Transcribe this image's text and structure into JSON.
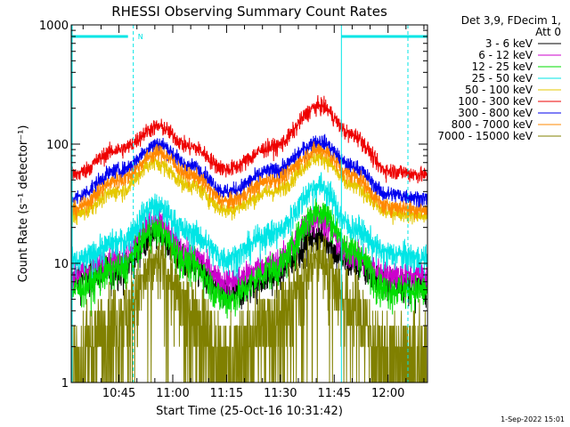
{
  "chart_data": {
    "type": "line",
    "title": "RHESSI Observing Summary Count Rates",
    "xlabel": "Start Time (25-Oct-16 10:31:42)",
    "ylabel": "Count Rate (s⁻¹ detector⁻¹)",
    "y_scale": "log",
    "ylim": [
      1,
      1000
    ],
    "xlim": [
      "10:31:42",
      "12:11:00"
    ],
    "x_ticks": [
      "10:45",
      "11:00",
      "11:15",
      "11:30",
      "11:45",
      "12:00"
    ],
    "y_ticks": [
      "1",
      "10",
      "100",
      "1000"
    ],
    "grid": false,
    "legend_title": [
      "Det 3,9, FDecim 1,",
      "Att 0"
    ],
    "legend_position": "right",
    "footer": "1-Sep-2022 15:01",
    "night_marker": "N",
    "night_start": "10:49:00",
    "night_end": "11:47:00",
    "series": [
      {
        "name": "3 - 6 keV",
        "color": "#000000",
        "points": [
          [
            "10:31:42",
            7.5
          ],
          [
            "10:45",
            9
          ],
          [
            "10:55",
            18
          ],
          [
            "11:05",
            10
          ],
          [
            "11:15",
            5.5
          ],
          [
            "11:28",
            8
          ],
          [
            "11:40",
            17
          ],
          [
            "11:50",
            10
          ],
          [
            "12:00",
            7
          ],
          [
            "12:11",
            6.5
          ]
        ]
      },
      {
        "name": "6 - 12 keV",
        "color": "#cc00cc",
        "points": [
          [
            "10:31:42",
            8
          ],
          [
            "10:45",
            11
          ],
          [
            "10:55",
            22
          ],
          [
            "11:05",
            12
          ],
          [
            "11:15",
            7
          ],
          [
            "11:28",
            10
          ],
          [
            "11:40",
            24
          ],
          [
            "11:50",
            12
          ],
          [
            "12:00",
            8
          ],
          [
            "12:11",
            8
          ]
        ]
      },
      {
        "name": "12 - 25 keV",
        "color": "#00dd00",
        "points": [
          [
            "10:31:42",
            6
          ],
          [
            "10:45",
            9
          ],
          [
            "10:55",
            19
          ],
          [
            "11:05",
            10
          ],
          [
            "11:15",
            5
          ],
          [
            "11:28",
            9
          ],
          [
            "11:41",
            28
          ],
          [
            "11:50",
            13
          ],
          [
            "12:00",
            6
          ],
          [
            "12:11",
            6
          ]
        ]
      },
      {
        "name": "25 - 50 keV",
        "color": "#00e5e5",
        "points": [
          [
            "10:31:42",
            10
          ],
          [
            "10:45",
            15
          ],
          [
            "10:55",
            30
          ],
          [
            "11:05",
            18
          ],
          [
            "11:15",
            11
          ],
          [
            "11:28",
            18
          ],
          [
            "11:41",
            45
          ],
          [
            "11:50",
            20
          ],
          [
            "12:00",
            12
          ],
          [
            "12:11",
            11
          ]
        ]
      },
      {
        "name": "50 - 100 keV",
        "color": "#e5c800",
        "points": [
          [
            "10:31:42",
            25
          ],
          [
            "10:45",
            40
          ],
          [
            "10:55",
            70
          ],
          [
            "11:05",
            45
          ],
          [
            "11:15",
            28
          ],
          [
            "11:28",
            40
          ],
          [
            "11:41",
            78
          ],
          [
            "11:50",
            45
          ],
          [
            "12:00",
            27
          ],
          [
            "12:11",
            25
          ]
        ]
      },
      {
        "name": "100 - 300 keV",
        "color": "#ee0000",
        "points": [
          [
            "10:31:42",
            55
          ],
          [
            "10:45",
            90
          ],
          [
            "10:56",
            140
          ],
          [
            "11:05",
            95
          ],
          [
            "11:15",
            62
          ],
          [
            "11:28",
            95
          ],
          [
            "11:41",
            210
          ],
          [
            "11:50",
            120
          ],
          [
            "12:00",
            60
          ],
          [
            "12:11",
            55
          ]
        ]
      },
      {
        "name": "300 - 800 keV",
        "color": "#0000ee",
        "points": [
          [
            "10:31:42",
            35
          ],
          [
            "10:45",
            60
          ],
          [
            "10:56",
            100
          ],
          [
            "11:05",
            65
          ],
          [
            "11:15",
            40
          ],
          [
            "11:28",
            60
          ],
          [
            "11:41",
            105
          ],
          [
            "11:50",
            65
          ],
          [
            "12:00",
            38
          ],
          [
            "12:11",
            35
          ]
        ]
      },
      {
        "name": "800 - 7000 keV",
        "color": "#ff8800",
        "points": [
          [
            "10:31:42",
            28
          ],
          [
            "10:45",
            50
          ],
          [
            "10:56",
            85
          ],
          [
            "11:05",
            55
          ],
          [
            "11:15",
            33
          ],
          [
            "11:28",
            50
          ],
          [
            "11:41",
            90
          ],
          [
            "11:50",
            55
          ],
          [
            "12:00",
            30
          ],
          [
            "12:11",
            28
          ]
        ]
      },
      {
        "name": "7000 - 15000 keV",
        "color": "#808000",
        "points": [
          [
            "10:31:42",
            1.5
          ],
          [
            "10:45",
            3.5
          ],
          [
            "10:56",
            10
          ],
          [
            "11:05",
            4
          ],
          [
            "11:15",
            1.5
          ],
          [
            "11:28",
            3.5
          ],
          [
            "11:41",
            11
          ],
          [
            "11:50",
            4.5
          ],
          [
            "12:00",
            1.5
          ],
          [
            "12:11",
            1.5
          ]
        ]
      }
    ]
  }
}
